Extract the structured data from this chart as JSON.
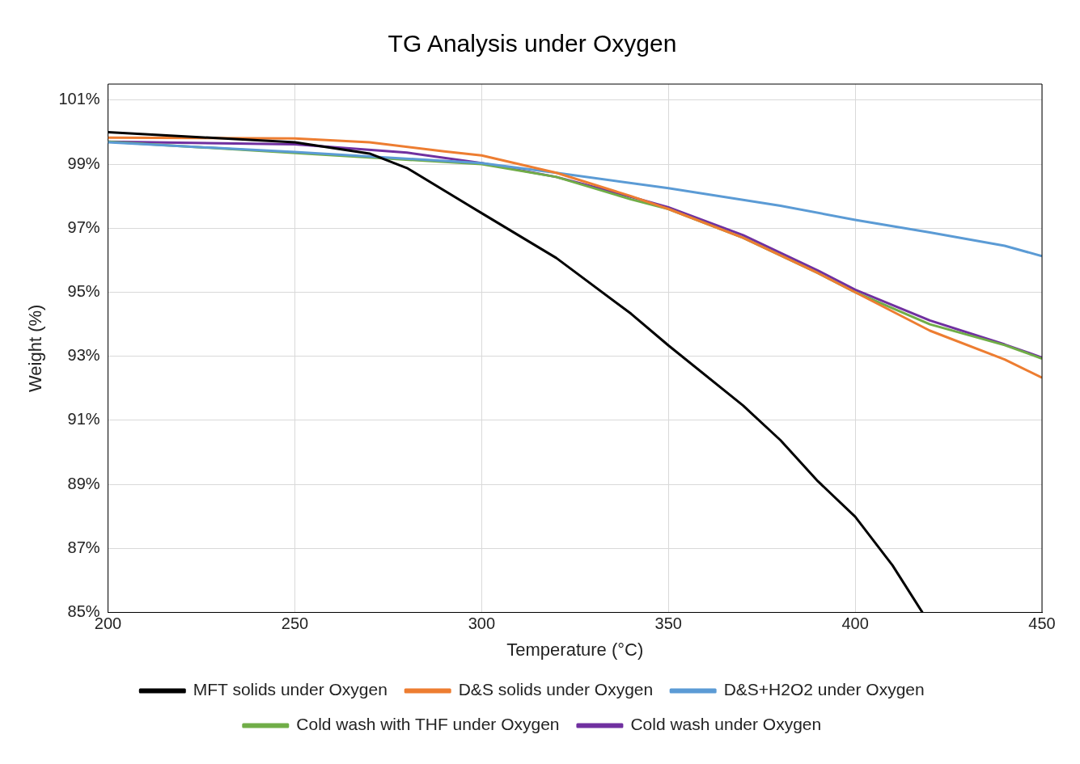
{
  "chart_data": {
    "type": "line",
    "title": "TG Analysis under Oxygen",
    "xlabel": "Temperature (°C)",
    "ylabel": "Weight (%)",
    "xlim": [
      200,
      450
    ],
    "xticks": [
      200,
      250,
      300,
      350,
      400,
      450
    ],
    "ylim": [
      85,
      101.5
    ],
    "yticks": [
      {
        "value": 85,
        "label": "85%"
      },
      {
        "value": 87,
        "label": "87%"
      },
      {
        "value": 89,
        "label": "89%"
      },
      {
        "value": 91,
        "label": "91%"
      },
      {
        "value": 93,
        "label": "93%"
      },
      {
        "value": 95,
        "label": "95%"
      },
      {
        "value": 97,
        "label": "97%"
      },
      {
        "value": 99,
        "label": "99%"
      },
      {
        "value": 101,
        "label": "101%"
      }
    ],
    "grid": true,
    "legend": "bottom",
    "marker": "none",
    "line_style": "solid",
    "series": [
      {
        "name": "MFT solids under Oxygen",
        "color": "#000000",
        "x": [
          200,
          250,
          270,
          280,
          300,
          320,
          340,
          350,
          370,
          380,
          390,
          400,
          410,
          418
        ],
        "values": [
          100.0,
          99.68,
          99.33,
          98.88,
          97.47,
          96.07,
          94.33,
          93.34,
          91.46,
          90.38,
          89.1,
          87.99,
          86.47,
          85.0
        ]
      },
      {
        "name": "D&S solids under Oxygen",
        "color": "#ed7d31",
        "x": [
          200,
          250,
          270,
          290,
          300,
          320,
          340,
          350,
          370,
          390,
          400,
          420,
          440,
          450
        ],
        "values": [
          99.83,
          99.8,
          99.68,
          99.4,
          99.27,
          98.73,
          98.0,
          97.6,
          96.7,
          95.6,
          95.0,
          93.8,
          92.9,
          92.33
        ]
      },
      {
        "name": "D&S+H2O2 under Oxygen",
        "color": "#5b9bd5",
        "x": [
          200,
          250,
          300,
          320,
          350,
          380,
          400,
          420,
          440,
          450
        ],
        "values": [
          99.68,
          99.38,
          99.03,
          98.73,
          98.25,
          97.7,
          97.26,
          96.87,
          96.45,
          96.13
        ]
      },
      {
        "name": "Cold wash with THF under Oxygen",
        "color": "#70ad47",
        "x": [
          200,
          300,
          320,
          340,
          350,
          370,
          390,
          400,
          420,
          440,
          450
        ],
        "values": [
          99.7,
          99.0,
          98.6,
          97.9,
          97.6,
          96.7,
          95.6,
          95.0,
          94.0,
          93.35,
          92.93
        ]
      },
      {
        "name": "Cold wash under Oxygen",
        "color": "#7030a0",
        "x": [
          200,
          250,
          280,
          300,
          320,
          340,
          350,
          370,
          390,
          400,
          420,
          440,
          450
        ],
        "values": [
          99.7,
          99.62,
          99.36,
          99.03,
          98.6,
          97.98,
          97.65,
          96.78,
          95.68,
          95.08,
          94.12,
          93.37,
          92.96
        ]
      }
    ]
  }
}
